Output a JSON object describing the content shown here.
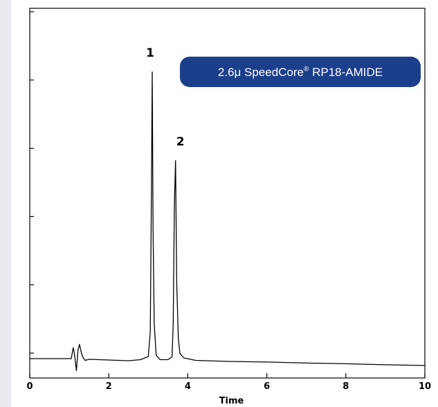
{
  "chart_data": {
    "type": "line",
    "title": "",
    "xlabel": "Time",
    "ylabel": "",
    "xlim": [
      0,
      10
    ],
    "ylim": [
      0,
      100
    ],
    "x_ticks": [
      0,
      2,
      4,
      6,
      8,
      10
    ],
    "x_tick_labels": [
      "0",
      "2",
      "4",
      "6",
      "8",
      "10"
    ],
    "y_ticks": [
      0,
      20,
      40,
      60,
      80,
      100
    ],
    "grid": false,
    "legend": "none",
    "line_color": "#000000",
    "series": [
      {
        "x": [
          0.0,
          1.05,
          1.1,
          1.13,
          1.18,
          1.22,
          1.26,
          1.3,
          1.34,
          1.4,
          1.5,
          2.0,
          2.5,
          2.8,
          3.0,
          3.05,
          3.08,
          3.1,
          3.12,
          3.15,
          3.2,
          3.3,
          3.5,
          3.6,
          3.63,
          3.66,
          3.69,
          3.72,
          3.76,
          3.8,
          3.9,
          4.2,
          5.0,
          6.0,
          7.0,
          8.0,
          9.0,
          10.0
        ],
        "y": [
          0.0,
          0.0,
          3.2,
          1.5,
          -3.5,
          2.5,
          4.2,
          2.0,
          0.5,
          -0.5,
          -0.2,
          -0.4,
          -0.6,
          -0.3,
          0.6,
          8.0,
          50.0,
          84.0,
          38.0,
          10.0,
          1.0,
          -0.3,
          -0.3,
          0.5,
          10.0,
          45.0,
          58.0,
          22.0,
          6.0,
          1.5,
          0.2,
          -0.5,
          -0.8,
          -1.0,
          -1.3,
          -1.5,
          -1.8,
          -2.0
        ]
      }
    ],
    "annotations": [
      {
        "text": "1",
        "x": 3.1,
        "y": 84.0
      },
      {
        "text": "2",
        "x": 3.69,
        "y": 58.0
      }
    ]
  },
  "badge": {
    "text_main": "2.6μ SpeedCore",
    "registered_mark": "®",
    "text_suffix": " RP18-AMIDE",
    "color": "#1b3f8b"
  }
}
